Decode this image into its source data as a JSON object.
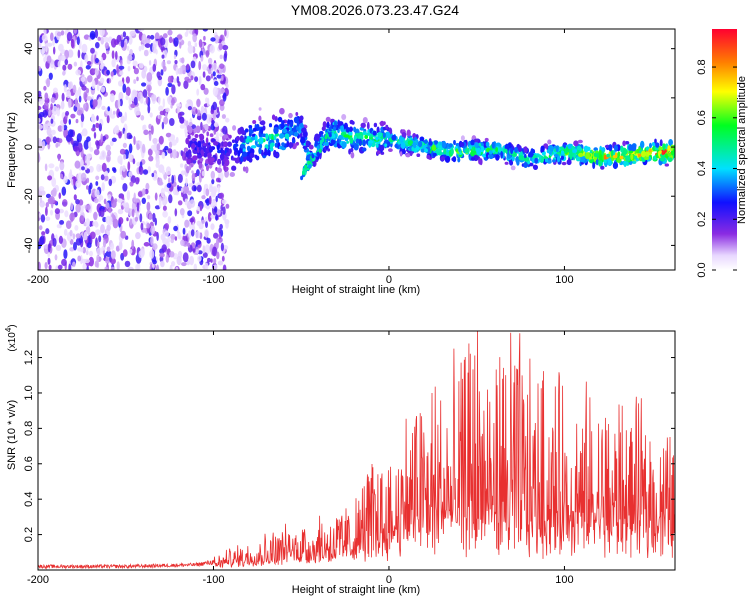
{
  "title": "YM08.2026.073.23.47.G24",
  "chart_data": [
    {
      "type": "heatmap",
      "xlabel": "Height of straight line (km)",
      "ylabel": "Frequency (Hz)",
      "xlim": [
        -200,
        163
      ],
      "ylim": [
        -50,
        48
      ],
      "xticks": [
        -200,
        -100,
        0,
        100
      ],
      "yticks": [
        -40,
        -20,
        0,
        20,
        40
      ],
      "colorbar": {
        "label": "Normalized spectral amplitude",
        "range": [
          0,
          0.95
        ],
        "ticks": [
          0.0,
          0.2,
          0.4,
          0.6,
          0.8
        ],
        "tick_labels": [
          "0.0",
          "0.2",
          "0.4",
          "0.6",
          "0.8"
        ]
      },
      "description_points": [
        {
          "x": -110,
          "y": 0,
          "amp": 0.25
        },
        {
          "x": -90,
          "y": -3,
          "amp": 0.3
        },
        {
          "x": -80,
          "y": 2,
          "amp": 0.45
        },
        {
          "x": -65,
          "y": 3,
          "amp": 0.5
        },
        {
          "x": -50,
          "y": 8,
          "amp": 0.45
        },
        {
          "x": -45,
          "y": -5,
          "amp": 0.4
        },
        {
          "x": -35,
          "y": 5,
          "amp": 0.5
        },
        {
          "x": -20,
          "y": 4,
          "amp": 0.55
        },
        {
          "x": 0,
          "y": 3,
          "amp": 0.5
        },
        {
          "x": 20,
          "y": 0,
          "amp": 0.55
        },
        {
          "x": 40,
          "y": -2,
          "amp": 0.6
        },
        {
          "x": 60,
          "y": -1,
          "amp": 0.55
        },
        {
          "x": 80,
          "y": -5,
          "amp": 0.5
        },
        {
          "x": 100,
          "y": -2,
          "amp": 0.6
        },
        {
          "x": 120,
          "y": -4,
          "amp": 0.75
        },
        {
          "x": 140,
          "y": -3,
          "amp": 0.8
        },
        {
          "x": 160,
          "y": -2,
          "amp": 0.9
        }
      ]
    },
    {
      "type": "line",
      "xlabel": "Height of straight line (km)",
      "ylabel": "SNR (10 * v/v)",
      "y_multiplier": "(x10",
      "y_multiplier_exp": "4",
      "y_multiplier_close": ")",
      "xlim": [
        -200,
        163
      ],
      "ylim": [
        0,
        1.35
      ],
      "xticks": [
        -200,
        -100,
        0,
        100
      ],
      "yticks": [
        0.2,
        0.4,
        0.6,
        0.8,
        1.0,
        1.2
      ],
      "ytick_labels": [
        "0.2",
        "0.4",
        "0.6",
        "0.8",
        "1.0",
        "1.2"
      ],
      "series": [
        {
          "name": "SNR",
          "color": "#e83030",
          "envelope_x": [
            -200,
            -150,
            -110,
            -100,
            -90,
            -80,
            -60,
            -40,
            -20,
            -10,
            0,
            10,
            20,
            30,
            40,
            50,
            60,
            70,
            80,
            100,
            120,
            140,
            163
          ],
          "envelope_y": [
            0.03,
            0.03,
            0.04,
            0.06,
            0.1,
            0.14,
            0.2,
            0.26,
            0.32,
            0.55,
            0.5,
            0.8,
            0.9,
            1.0,
            1.0,
            1.35,
            1.05,
            1.35,
            1.0,
            0.95,
            0.85,
            0.8,
            0.6
          ],
          "baseline_y": [
            0.01,
            0.01,
            0.02,
            0.03,
            0.05,
            0.07,
            0.1,
            0.12,
            0.15,
            0.22,
            0.24,
            0.3,
            0.32,
            0.33,
            0.32,
            0.33,
            0.33,
            0.32,
            0.3,
            0.3,
            0.3,
            0.3,
            0.32
          ]
        }
      ]
    }
  ],
  "colors": {
    "snr_line": "#e83030"
  }
}
